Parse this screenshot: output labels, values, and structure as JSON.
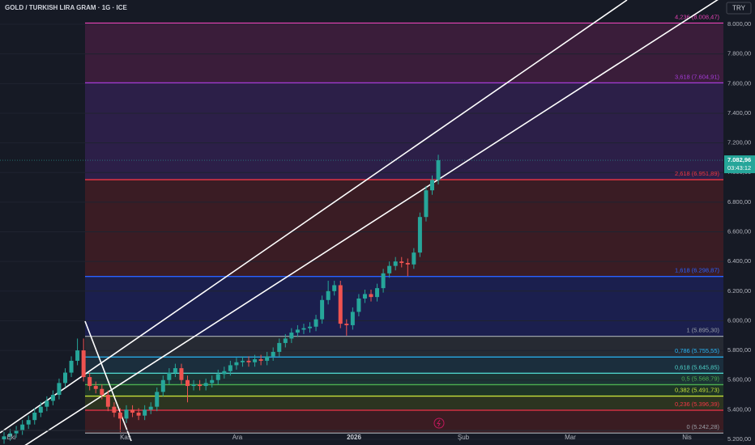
{
  "chart_data": {
    "type": "candlestick",
    "title": "GOLD / TURKISH LIRA GRAM · 1G · ICE",
    "currency_button": "TRY",
    "up_color": "#26a69a",
    "down_color": "#ef5350",
    "ylim": [
      5200,
      8164
    ],
    "yticks": [
      {
        "value": 5200,
        "label": "5.200,00"
      },
      {
        "value": 5400,
        "label": "5.400,00"
      },
      {
        "value": 5600,
        "label": "5.600,00"
      },
      {
        "value": 5800,
        "label": "5.800,00"
      },
      {
        "value": 6000,
        "label": "6.000,00"
      },
      {
        "value": 6200,
        "label": "6.200,00"
      },
      {
        "value": 6400,
        "label": "6.400,00"
      },
      {
        "value": 6600,
        "label": "6.600,00"
      },
      {
        "value": 6800,
        "label": "6.800,00"
      },
      {
        "value": 7000,
        "label": "7.000,00"
      },
      {
        "value": 7200,
        "label": "7.200,00"
      },
      {
        "value": 7400,
        "label": "7.400,00"
      },
      {
        "value": 7600,
        "label": "7.600,00"
      },
      {
        "value": 7800,
        "label": "7.800,00"
      },
      {
        "value": 8000,
        "label": "8.000,00"
      }
    ],
    "x_labels": [
      "Eki",
      "Kas",
      "Ara",
      "2026",
      "Şub",
      "Mar",
      "Nis"
    ],
    "ohlc": {
      "open": [
        5200,
        5220,
        5240,
        5260,
        5300,
        5330,
        5380,
        5420,
        5460,
        5500,
        5580,
        5650,
        5730,
        5800,
        5620,
        5560,
        5540,
        5500,
        5420,
        5380,
        5340,
        5400,
        5380,
        5360,
        5400,
        5420,
        5520,
        5600,
        5650,
        5680,
        5600,
        5560,
        5570,
        5560,
        5580,
        5600,
        5640,
        5660,
        5700,
        5720,
        5730,
        5720,
        5740,
        5730,
        5760,
        5790,
        5850,
        5880,
        5920,
        5940,
        5950,
        5960,
        6010,
        6140,
        6200,
        6240,
        5980,
        5970,
        6060,
        6150,
        6180,
        6160,
        6220,
        6320,
        6370,
        6400,
        6390,
        6380,
        6460,
        6700,
        6880,
        6950
      ],
      "high": [
        5250,
        5270,
        5290,
        5330,
        5360,
        5410,
        5450,
        5490,
        5530,
        5610,
        5680,
        5760,
        5880,
        5880,
        5650,
        5590,
        5570,
        5530,
        5450,
        5410,
        5430,
        5430,
        5410,
        5430,
        5450,
        5550,
        5630,
        5680,
        5710,
        5710,
        5630,
        5600,
        5600,
        5610,
        5630,
        5670,
        5690,
        5730,
        5750,
        5760,
        5760,
        5770,
        5770,
        5790,
        5820,
        5880,
        5910,
        5950,
        5970,
        5980,
        5990,
        6040,
        6170,
        6270,
        6270,
        6270,
        6010,
        6090,
        6180,
        6210,
        6210,
        6250,
        6350,
        6400,
        6430,
        6430,
        6420,
        6490,
        6730,
        6910,
        6980,
        7120
      ],
      "low": [
        5170,
        5190,
        5210,
        5230,
        5270,
        5300,
        5350,
        5390,
        5430,
        5470,
        5550,
        5620,
        5700,
        5590,
        5530,
        5510,
        5470,
        5390,
        5350,
        5250,
        5310,
        5350,
        5330,
        5330,
        5370,
        5390,
        5490,
        5570,
        5620,
        5570,
        5450,
        5530,
        5530,
        5530,
        5550,
        5570,
        5610,
        5630,
        5670,
        5690,
        5690,
        5690,
        5700,
        5700,
        5730,
        5760,
        5820,
        5850,
        5890,
        5910,
        5920,
        5930,
        5980,
        6110,
        6170,
        5950,
        5900,
        5940,
        6030,
        6120,
        6130,
        6130,
        6190,
        6290,
        6340,
        6360,
        6300,
        6350,
        6430,
        6670,
        6850,
        6920
      ],
      "close": [
        5220,
        5240,
        5260,
        5300,
        5330,
        5380,
        5420,
        5460,
        5500,
        5580,
        5650,
        5730,
        5800,
        5620,
        5560,
        5540,
        5500,
        5420,
        5380,
        5340,
        5400,
        5380,
        5360,
        5400,
        5420,
        5520,
        5600,
        5650,
        5680,
        5600,
        5560,
        5570,
        5560,
        5580,
        5600,
        5640,
        5660,
        5700,
        5720,
        5730,
        5720,
        5740,
        5730,
        5760,
        5790,
        5850,
        5880,
        5920,
        5940,
        5950,
        5960,
        6010,
        6140,
        6200,
        6240,
        5980,
        5970,
        6060,
        6150,
        6180,
        6160,
        6220,
        6320,
        6370,
        6400,
        6390,
        6380,
        6460,
        6700,
        6880,
        6950,
        7083
      ]
    },
    "last_price": {
      "value": 7082.96,
      "label": "7.082,96"
    },
    "countdown": "03:43:12",
    "fib_levels": [
      {
        "value": 8008.47,
        "label": "4,236 (8.008,47)",
        "color": "#e040b0",
        "fill": "#3a1d3a"
      },
      {
        "value": 7604.91,
        "label": "3,618 (7.604,91)",
        "color": "#a43ad6",
        "fill": "#2c1f48"
      },
      {
        "value": 6951.89,
        "label": "2,618 (6.951,89)",
        "color": "#f23645",
        "fill": "#3a1c24"
      },
      {
        "value": 6298.87,
        "label": "1,618 (6.298,87)",
        "color": "#2962ff",
        "fill": "#1b1f4e"
      },
      {
        "value": 5895.3,
        "label": "1 (5.895,30)",
        "color": "#9aa0a8",
        "fill": "#262a33"
      },
      {
        "value": 5755.55,
        "label": "0,786 (5.755,55)",
        "color": "#29b6f6",
        "fill": "#1b2e3d"
      },
      {
        "value": 5645.85,
        "label": "0,618 (5.645,85)",
        "color": "#4dd0c8",
        "fill": "#1b3434"
      },
      {
        "value": 5568.79,
        "label": "0,5 (5.568,79)",
        "color": "#4caf50",
        "fill": "#1d3526"
      },
      {
        "value": 5491.73,
        "label": "0,382 (5.491,73)",
        "color": "#c6e03a",
        "fill": "#2c3420"
      },
      {
        "value": 5396.39,
        "label": "0,236 (5.396,39)",
        "color": "#f23645",
        "fill": "#3a1c22"
      },
      {
        "value": 5242.28,
        "label": "0 (5.242,28)",
        "color": "#9aa0a8",
        "fill": "none"
      }
    ]
  }
}
